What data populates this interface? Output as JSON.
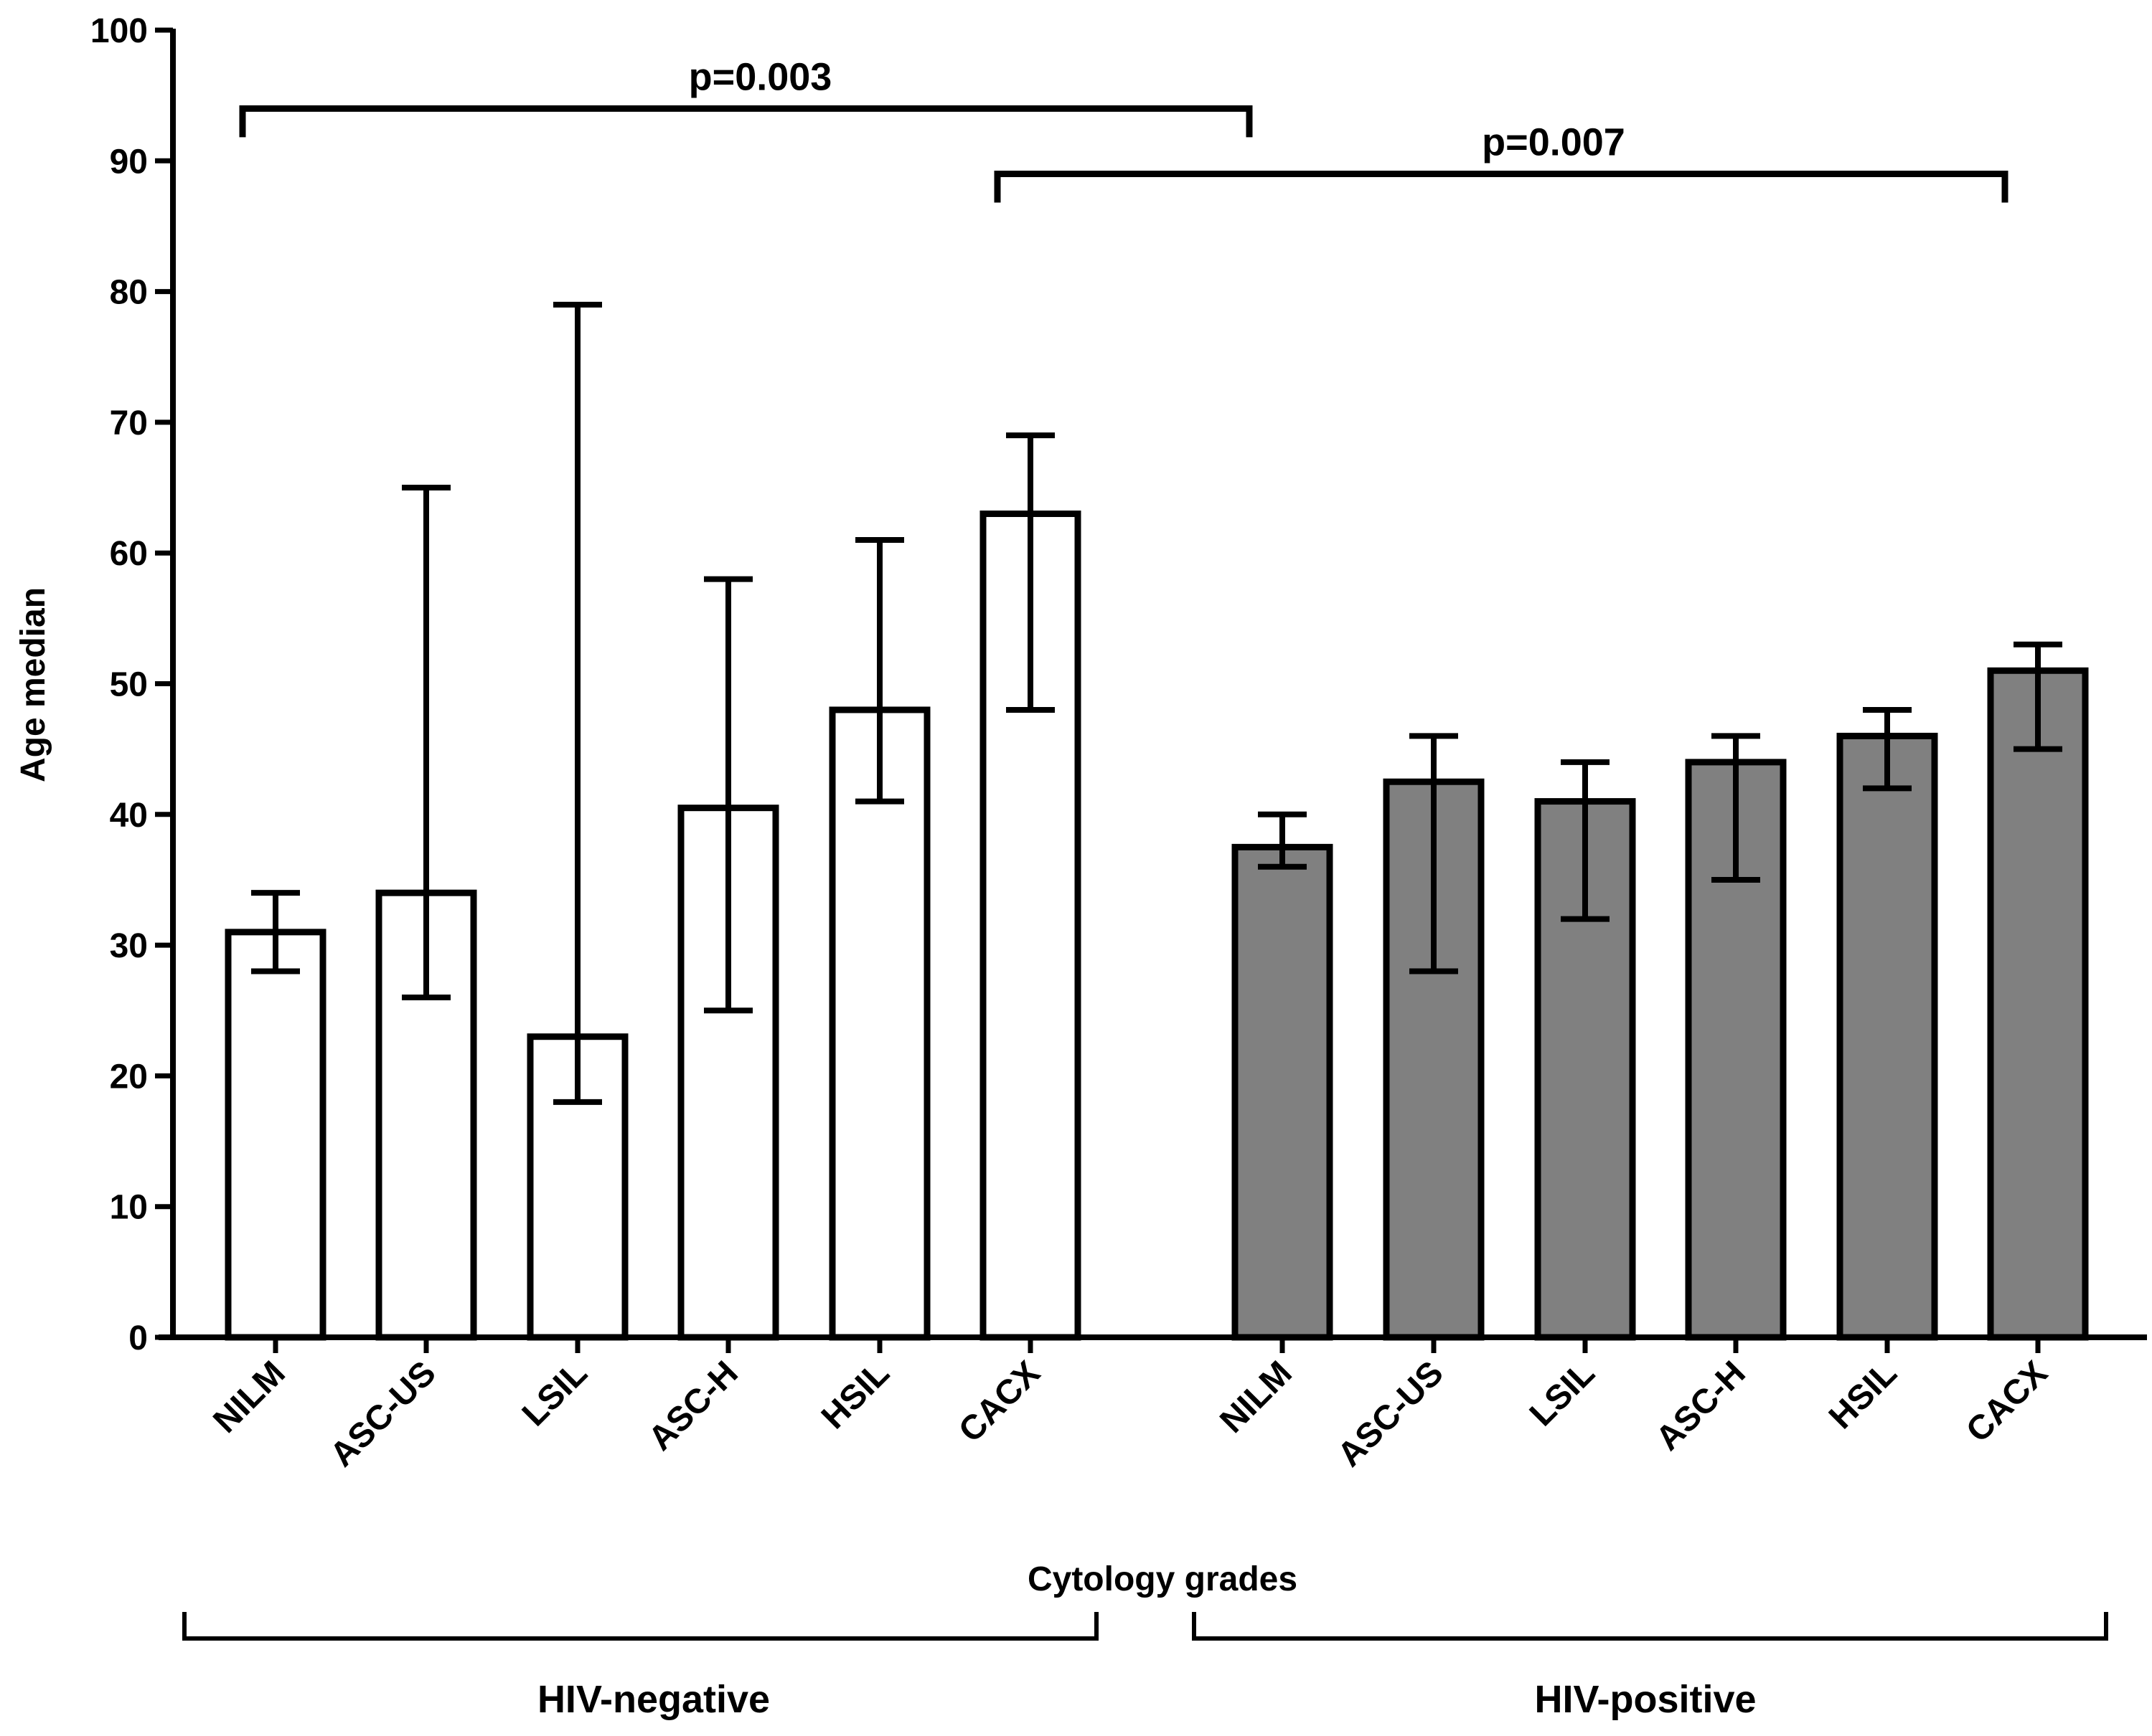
{
  "chart_data": {
    "type": "bar",
    "title": "",
    "xlabel": "Cytology grades",
    "ylabel": "Age median",
    "ylim": [
      0,
      100
    ],
    "yticks": [
      0,
      10,
      20,
      30,
      40,
      50,
      60,
      70,
      80,
      90,
      100
    ],
    "grid": false,
    "groups": [
      {
        "name": "HIV-negative",
        "color": "#ffffff",
        "categories": [
          "NILM",
          "ASC-US",
          "LSIL",
          "ASC-H",
          "HSIL",
          "CACX"
        ],
        "values": [
          31,
          34,
          23,
          40.5,
          48,
          63
        ],
        "error_low": [
          28,
          26,
          18,
          25,
          41,
          48
        ],
        "error_high": [
          34,
          65,
          79,
          58,
          61,
          69
        ]
      },
      {
        "name": "HIV-positive",
        "color": "#808080",
        "categories": [
          "NILM",
          "ASC-US",
          "LSIL",
          "ASC-H",
          "HSIL",
          "CACX"
        ],
        "values": [
          37.5,
          42.5,
          41,
          44,
          46,
          51
        ],
        "error_low": [
          36,
          28,
          32,
          35,
          42,
          45
        ],
        "error_high": [
          40,
          46,
          44,
          46,
          48,
          53
        ]
      }
    ],
    "annotations": [
      {
        "text": "p=0.003",
        "from": [
          0,
          0
        ],
        "to": [
          1,
          0
        ],
        "level": 94
      },
      {
        "text": "p=0.007",
        "from": [
          0,
          5
        ],
        "to": [
          1,
          5
        ],
        "level": 89
      }
    ]
  }
}
